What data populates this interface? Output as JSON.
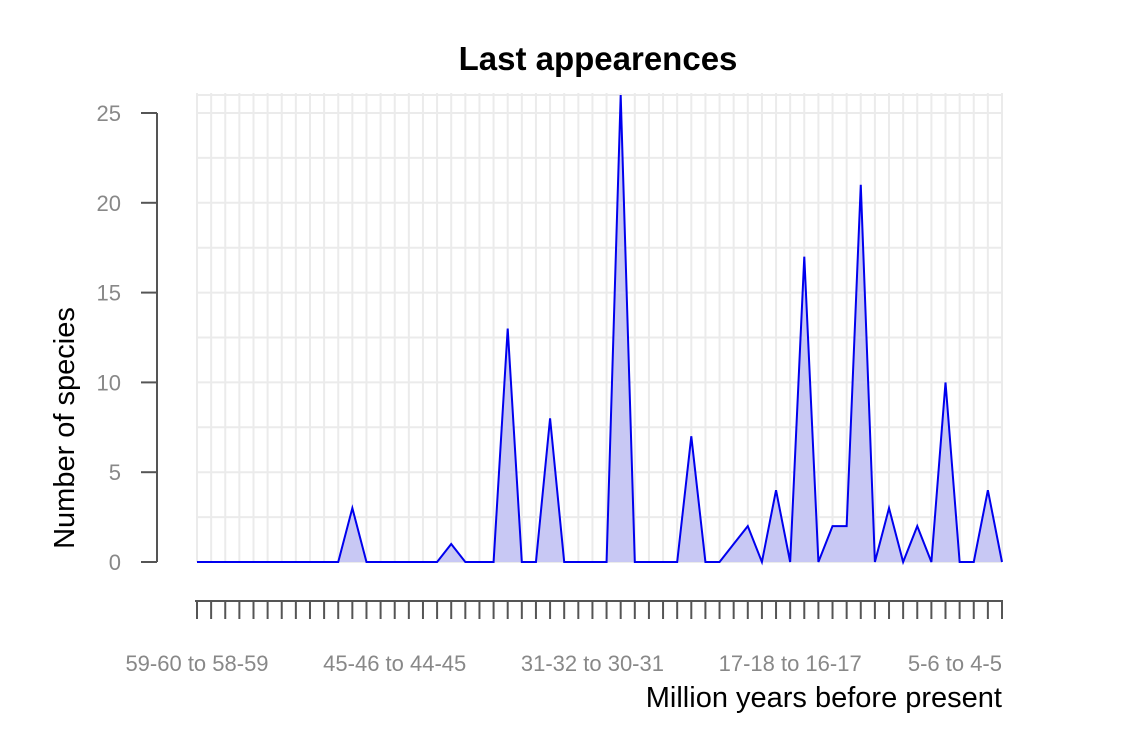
{
  "chart_data": {
    "type": "area",
    "title": "Last appearences",
    "xlabel": "Million years before present",
    "ylabel": "Number of species",
    "ylim": [
      0,
      26
    ],
    "yticks": [
      0,
      5,
      10,
      15,
      20,
      25
    ],
    "xtick_labels": [
      "59-60 to 58-59",
      "45-46 to 44-45",
      "31-32 to 30-31",
      "17-18 to 16-17",
      "5-6 to 4-5"
    ],
    "grid": true,
    "colors": {
      "line": "#0000ee",
      "fill": "#c8c8f4",
      "grid": "#ebebeb",
      "axis": "#555555",
      "tick_label": "#888888"
    },
    "series": [
      {
        "values": [
          0,
          0,
          0,
          0,
          0,
          0,
          0,
          0,
          0,
          0,
          0,
          3,
          0,
          0,
          0,
          0,
          0,
          0,
          1,
          0,
          0,
          0,
          13,
          0,
          0,
          8,
          0,
          0,
          0,
          0,
          26,
          0,
          0,
          0,
          0,
          7,
          0,
          0,
          1,
          2,
          0,
          4,
          0,
          17,
          0,
          2,
          2,
          21,
          0,
          3,
          0,
          2,
          0,
          10,
          0,
          0,
          4,
          0
        ]
      }
    ]
  }
}
